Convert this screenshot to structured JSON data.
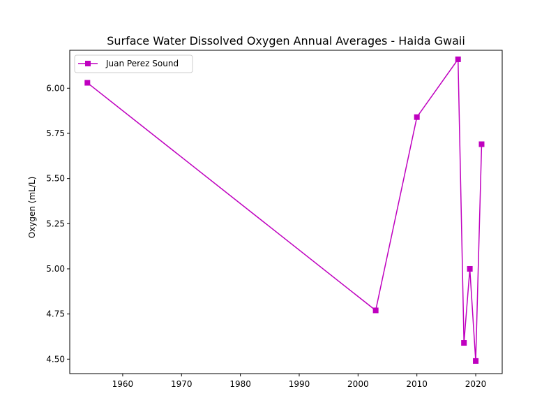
{
  "chart_data": {
    "type": "line",
    "title": "Surface Water Dissolved Oxygen Annual Averages - Haida Gwaii",
    "xlabel": "",
    "ylabel": "Oxygen (mL/L)",
    "xlim": [
      1951,
      2024.5
    ],
    "ylim": [
      4.42,
      6.21
    ],
    "xticks": [
      1960,
      1970,
      1980,
      1990,
      2000,
      2010,
      2020
    ],
    "yticks": [
      "4.50",
      "4.75",
      "5.00",
      "5.25",
      "5.50",
      "5.75",
      "6.00"
    ],
    "legend_position": "top-left",
    "grid": false,
    "series": [
      {
        "name": "Juan Perez Sound",
        "color": "#bf00bf",
        "marker": "square",
        "x": [
          1954,
          2003,
          2010,
          2017,
          2018,
          2019,
          2020,
          2021
        ],
        "y": [
          6.03,
          4.77,
          5.84,
          6.16,
          4.59,
          5.0,
          4.49,
          5.69
        ]
      }
    ]
  }
}
